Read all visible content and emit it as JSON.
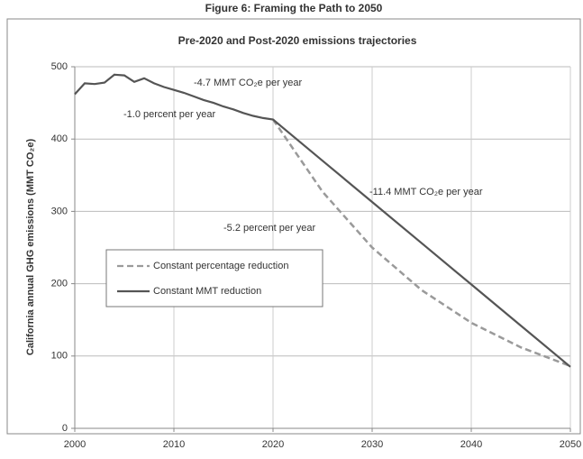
{
  "chart_data": {
    "type": "line",
    "figure_title": "Figure 6:  Framing the Path to 2050",
    "title": "Pre-2020 and Post-2020 emissions trajectories",
    "y_label": "California annual GHG emissions (MMT CO₂e)",
    "x": [
      2000,
      2001,
      2002,
      2003,
      2004,
      2005,
      2006,
      2007,
      2008,
      2009,
      2010,
      2011,
      2012,
      2013,
      2014,
      2015,
      2016,
      2017,
      2018,
      2019,
      2020,
      2025,
      2030,
      2035,
      2040,
      2045,
      2050
    ],
    "series": [
      {
        "name": "Constant percentage reduction",
        "color": "#9a9a9a",
        "dashed": true,
        "values": [
          null,
          null,
          null,
          null,
          null,
          null,
          null,
          null,
          null,
          null,
          null,
          null,
          null,
          null,
          null,
          null,
          null,
          null,
          null,
          null,
          427,
          327,
          250,
          191,
          146,
          112,
          86
        ]
      },
      {
        "name": "Constant MMT reduction",
        "color": "#555555",
        "dashed": false,
        "values": [
          462,
          477,
          476,
          478,
          489,
          488,
          479,
          484,
          477,
          472,
          468,
          464,
          459,
          454,
          450,
          445,
          441,
          436,
          432,
          429,
          427,
          370,
          313,
          256,
          199,
          142,
          85
        ]
      }
    ],
    "annotations": [
      "-4.7 MMT CO₂e per year",
      "-1.0 percent per year",
      "-11.4 MMT CO₂e per year",
      "-5.2 percent per year"
    ],
    "xlim": [
      2000,
      2050
    ],
    "xticks": [
      2000,
      2010,
      2020,
      2030,
      2040,
      2050
    ],
    "ylim": [
      0,
      500
    ],
    "yticks": [
      0,
      100,
      200,
      300,
      400,
      500
    ],
    "grid": true,
    "legend": "lower left"
  }
}
